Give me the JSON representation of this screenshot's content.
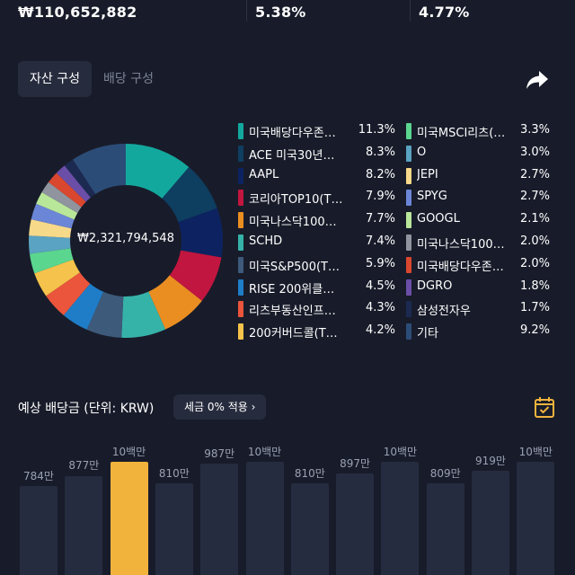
{
  "summary": {
    "total_value": "₩110,652,882",
    "rate1": "5.38%",
    "rate2": "4.77%"
  },
  "tabs": [
    {
      "label": "자산 구성",
      "active": true
    },
    {
      "label": "배당 구성",
      "active": false
    }
  ],
  "donut": {
    "center_value": "₩2,321,794,548"
  },
  "legend": [
    {
      "name": "미국배당다우존…",
      "pct": "11.3%",
      "value": 11.3,
      "color": "#13a89e"
    },
    {
      "name": "ACE 미국30년…",
      "pct": "8.3%",
      "value": 8.3,
      "color": "#0e3e60"
    },
    {
      "name": "AAPL",
      "pct": "8.2%",
      "value": 8.2,
      "color": "#0d2361"
    },
    {
      "name": "코리아TOP10(T…",
      "pct": "7.9%",
      "value": 7.9,
      "color": "#c1163f"
    },
    {
      "name": "미국나스닥100…",
      "pct": "7.7%",
      "value": 7.7,
      "color": "#ea8e22"
    },
    {
      "name": "SCHD",
      "pct": "7.4%",
      "value": 7.4,
      "color": "#36b3a9"
    },
    {
      "name": "미국S&P500(T…",
      "pct": "5.9%",
      "value": 5.9,
      "color": "#3e5a7a"
    },
    {
      "name": "RISE 200위클…",
      "pct": "4.5%",
      "value": 4.5,
      "color": "#1f7dc8"
    },
    {
      "name": "리츠부동산인프…",
      "pct": "4.3%",
      "value": 4.3,
      "color": "#ea553c"
    },
    {
      "name": "200커버드콜(T…",
      "pct": "4.2%",
      "value": 4.2,
      "color": "#f5c34b"
    },
    {
      "name": "미국MSCI리츠(…",
      "pct": "3.3%",
      "value": 3.3,
      "color": "#5bd68f"
    },
    {
      "name": "O",
      "pct": "3.0%",
      "value": 3.0,
      "color": "#5aa3c2"
    },
    {
      "name": "JEPI",
      "pct": "2.7%",
      "value": 2.7,
      "color": "#f7d98a"
    },
    {
      "name": "SPYG",
      "pct": "2.7%",
      "value": 2.7,
      "color": "#6b86d6"
    },
    {
      "name": "GOOGL",
      "pct": "2.1%",
      "value": 2.1,
      "color": "#b9e79a"
    },
    {
      "name": "미국나스닥100…",
      "pct": "2.0%",
      "value": 2.0,
      "color": "#8f949e"
    },
    {
      "name": "미국배당다우존…",
      "pct": "2.0%",
      "value": 2.0,
      "color": "#d9472f"
    },
    {
      "name": "DGRO",
      "pct": "1.8%",
      "value": 1.8,
      "color": "#6b4ea8"
    },
    {
      "name": "삼성전자우",
      "pct": "1.7%",
      "value": 1.7,
      "color": "#1c2a52"
    },
    {
      "name": "기타",
      "pct": "9.2%",
      "value": 9.2,
      "color": "#2c4c78"
    }
  ],
  "dividend": {
    "title": "예상 배당금 (단위: KRW)",
    "tax_chip": "세금 0% 적용 ›"
  },
  "chart_data": {
    "type": "bar",
    "categories": [
      "",
      "",
      "",
      "",
      "",
      "",
      "",
      "",
      "",
      "",
      "",
      ""
    ],
    "labels": [
      "784만",
      "877만",
      "10백만",
      "810만",
      "987만",
      "10백만",
      "810만",
      "897만",
      "10백만",
      "809만",
      "919만",
      "10백만"
    ],
    "values": [
      784,
      877,
      1000,
      810,
      987,
      1000,
      810,
      897,
      1000,
      809,
      919,
      1000
    ],
    "highlight_index": 2,
    "colors": {
      "bar": "#262c40",
      "highlight": "#f2b33d"
    }
  }
}
